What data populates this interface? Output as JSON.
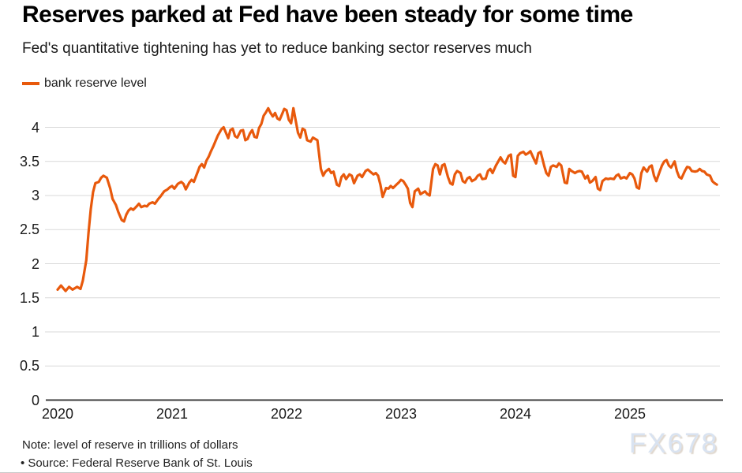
{
  "page": {
    "background": "#ffffff"
  },
  "header": {
    "title": "Reserves parked at Fed have been steady for some time",
    "subtitle": "Fed's quantitative tightening has yet to reduce banking sector reserves much"
  },
  "legend": {
    "label": "bank reserve level",
    "swatch_color": "#e8590c"
  },
  "footer": {
    "note": "Note: level of reserve in trillions of dollars",
    "source": "• Source: Federal Reserve Bank of St. Louis",
    "watermark": "FX678"
  },
  "colors": {
    "line": "#e8590c",
    "gridline": "#d9d9d9",
    "axis": "#3c3c3c",
    "text": "#1a1a1a"
  },
  "chart_data": {
    "type": "line",
    "title": "Reserves parked at Fed have been steady for some time",
    "subtitle": "Fed's quantitative tightening has yet to reduce banking sector reserves much",
    "xlabel": "",
    "ylabel": "",
    "unit_note": "level of reserve in trillions of dollars",
    "grid": "horizontal-only",
    "legend_position": "top-left",
    "x_domain": [
      2020,
      2025.79
    ],
    "y_domain": [
      0,
      4.3
    ],
    "x_tick_values": [
      2020,
      2021,
      2022,
      2023,
      2024,
      2025
    ],
    "x_tick_labels": [
      "2020",
      "2021",
      "2022",
      "2023",
      "2024",
      "2025"
    ],
    "y_tick_values": [
      0,
      0.5,
      1,
      1.5,
      2,
      2.5,
      3,
      3.5,
      4
    ],
    "y_tick_labels": [
      "0",
      "0.5",
      "1",
      "1.5",
      "2",
      "2.5",
      "3",
      "3.5",
      "4"
    ],
    "series": [
      {
        "name": "bank reserve level",
        "color": "#e8590c",
        "points": [
          [
            2020.0,
            1.62
          ],
          [
            2020.03,
            1.68
          ],
          [
            2020.07,
            1.6
          ],
          [
            2020.1,
            1.66
          ],
          [
            2020.13,
            1.62
          ],
          [
            2020.17,
            1.66
          ],
          [
            2020.2,
            1.63
          ],
          [
            2020.22,
            1.75
          ],
          [
            2020.25,
            2.05
          ],
          [
            2020.27,
            2.45
          ],
          [
            2020.29,
            2.8
          ],
          [
            2020.31,
            3.05
          ],
          [
            2020.33,
            3.18
          ],
          [
            2020.36,
            3.2
          ],
          [
            2020.38,
            3.26
          ],
          [
            2020.4,
            3.29
          ],
          [
            2020.43,
            3.26
          ],
          [
            2020.46,
            3.1
          ],
          [
            2020.48,
            2.95
          ],
          [
            2020.51,
            2.86
          ],
          [
            2020.53,
            2.76
          ],
          [
            2020.56,
            2.64
          ],
          [
            2020.58,
            2.62
          ],
          [
            2020.6,
            2.72
          ],
          [
            2020.62,
            2.78
          ],
          [
            2020.64,
            2.81
          ],
          [
            2020.66,
            2.79
          ],
          [
            2020.69,
            2.84
          ],
          [
            2020.71,
            2.88
          ],
          [
            2020.73,
            2.83
          ],
          [
            2020.76,
            2.85
          ],
          [
            2020.78,
            2.84
          ],
          [
            2020.8,
            2.88
          ],
          [
            2020.83,
            2.9
          ],
          [
            2020.85,
            2.88
          ],
          [
            2020.88,
            2.95
          ],
          [
            2020.9,
            2.99
          ],
          [
            2020.93,
            3.06
          ],
          [
            2020.96,
            3.09
          ],
          [
            2020.98,
            3.12
          ],
          [
            2021.0,
            3.14
          ],
          [
            2021.02,
            3.1
          ],
          [
            2021.05,
            3.17
          ],
          [
            2021.08,
            3.2
          ],
          [
            2021.1,
            3.17
          ],
          [
            2021.12,
            3.09
          ],
          [
            2021.15,
            3.19
          ],
          [
            2021.17,
            3.23
          ],
          [
            2021.19,
            3.2
          ],
          [
            2021.22,
            3.33
          ],
          [
            2021.24,
            3.42
          ],
          [
            2021.26,
            3.46
          ],
          [
            2021.28,
            3.41
          ],
          [
            2021.3,
            3.51
          ],
          [
            2021.32,
            3.57
          ],
          [
            2021.34,
            3.65
          ],
          [
            2021.36,
            3.72
          ],
          [
            2021.38,
            3.8
          ],
          [
            2021.4,
            3.88
          ],
          [
            2021.43,
            3.97
          ],
          [
            2021.45,
            4.0
          ],
          [
            2021.47,
            3.92
          ],
          [
            2021.49,
            3.84
          ],
          [
            2021.51,
            3.96
          ],
          [
            2021.53,
            3.98
          ],
          [
            2021.55,
            3.87
          ],
          [
            2021.57,
            3.85
          ],
          [
            2021.6,
            3.95
          ],
          [
            2021.62,
            3.96
          ],
          [
            2021.64,
            3.81
          ],
          [
            2021.66,
            3.83
          ],
          [
            2021.68,
            3.91
          ],
          [
            2021.7,
            3.96
          ],
          [
            2021.72,
            3.86
          ],
          [
            2021.74,
            3.85
          ],
          [
            2021.76,
            3.99
          ],
          [
            2021.78,
            4.05
          ],
          [
            2021.8,
            4.17
          ],
          [
            2021.82,
            4.22
          ],
          [
            2021.84,
            4.28
          ],
          [
            2021.86,
            4.21
          ],
          [
            2021.88,
            4.16
          ],
          [
            2021.9,
            4.21
          ],
          [
            2021.92,
            4.13
          ],
          [
            2021.94,
            4.11
          ],
          [
            2021.96,
            4.19
          ],
          [
            2021.98,
            4.27
          ],
          [
            2022.0,
            4.25
          ],
          [
            2022.02,
            4.11
          ],
          [
            2022.04,
            4.06
          ],
          [
            2022.06,
            4.28
          ],
          [
            2022.08,
            4.1
          ],
          [
            2022.1,
            3.92
          ],
          [
            2022.12,
            3.85
          ],
          [
            2022.14,
            3.98
          ],
          [
            2022.16,
            3.96
          ],
          [
            2022.18,
            3.81
          ],
          [
            2022.21,
            3.79
          ],
          [
            2022.23,
            3.85
          ],
          [
            2022.25,
            3.83
          ],
          [
            2022.27,
            3.81
          ],
          [
            2022.3,
            3.39
          ],
          [
            2022.32,
            3.29
          ],
          [
            2022.34,
            3.35
          ],
          [
            2022.37,
            3.39
          ],
          [
            2022.39,
            3.33
          ],
          [
            2022.41,
            3.35
          ],
          [
            2022.44,
            3.16
          ],
          [
            2022.46,
            3.14
          ],
          [
            2022.48,
            3.27
          ],
          [
            2022.5,
            3.31
          ],
          [
            2022.52,
            3.24
          ],
          [
            2022.55,
            3.31
          ],
          [
            2022.57,
            3.29
          ],
          [
            2022.59,
            3.18
          ],
          [
            2022.62,
            3.29
          ],
          [
            2022.64,
            3.31
          ],
          [
            2022.66,
            3.27
          ],
          [
            2022.69,
            3.36
          ],
          [
            2022.71,
            3.38
          ],
          [
            2022.73,
            3.35
          ],
          [
            2022.76,
            3.31
          ],
          [
            2022.78,
            3.33
          ],
          [
            2022.8,
            3.29
          ],
          [
            2022.82,
            3.16
          ],
          [
            2022.84,
            2.98
          ],
          [
            2022.87,
            3.11
          ],
          [
            2022.89,
            3.1
          ],
          [
            2022.91,
            3.14
          ],
          [
            2022.93,
            3.11
          ],
          [
            2022.96,
            3.16
          ],
          [
            2022.98,
            3.19
          ],
          [
            2023.0,
            3.23
          ],
          [
            2023.02,
            3.21
          ],
          [
            2023.04,
            3.16
          ],
          [
            2023.06,
            3.1
          ],
          [
            2023.08,
            2.89
          ],
          [
            2023.1,
            2.83
          ],
          [
            2023.12,
            3.06
          ],
          [
            2023.15,
            3.1
          ],
          [
            2023.17,
            3.02
          ],
          [
            2023.19,
            3.04
          ],
          [
            2023.21,
            3.06
          ],
          [
            2023.23,
            3.02
          ],
          [
            2023.25,
            3.0
          ],
          [
            2023.28,
            3.39
          ],
          [
            2023.3,
            3.46
          ],
          [
            2023.32,
            3.44
          ],
          [
            2023.34,
            3.31
          ],
          [
            2023.36,
            3.44
          ],
          [
            2023.38,
            3.46
          ],
          [
            2023.41,
            3.27
          ],
          [
            2023.43,
            3.18
          ],
          [
            2023.45,
            3.16
          ],
          [
            2023.47,
            3.31
          ],
          [
            2023.49,
            3.36
          ],
          [
            2023.52,
            3.33
          ],
          [
            2023.54,
            3.21
          ],
          [
            2023.56,
            3.19
          ],
          [
            2023.58,
            3.25
          ],
          [
            2023.6,
            3.27
          ],
          [
            2023.62,
            3.21
          ],
          [
            2023.65,
            3.24
          ],
          [
            2023.67,
            3.29
          ],
          [
            2023.69,
            3.31
          ],
          [
            2023.71,
            3.24
          ],
          [
            2023.74,
            3.25
          ],
          [
            2023.76,
            3.36
          ],
          [
            2023.78,
            3.39
          ],
          [
            2023.8,
            3.33
          ],
          [
            2023.83,
            3.44
          ],
          [
            2023.85,
            3.5
          ],
          [
            2023.87,
            3.56
          ],
          [
            2023.89,
            3.5
          ],
          [
            2023.91,
            3.47
          ],
          [
            2023.94,
            3.58
          ],
          [
            2023.96,
            3.6
          ],
          [
            2023.98,
            3.29
          ],
          [
            2024.0,
            3.27
          ],
          [
            2024.02,
            3.58
          ],
          [
            2024.04,
            3.62
          ],
          [
            2024.07,
            3.64
          ],
          [
            2024.09,
            3.6
          ],
          [
            2024.11,
            3.62
          ],
          [
            2024.13,
            3.65
          ],
          [
            2024.16,
            3.54
          ],
          [
            2024.18,
            3.47
          ],
          [
            2024.2,
            3.62
          ],
          [
            2024.22,
            3.64
          ],
          [
            2024.25,
            3.44
          ],
          [
            2024.27,
            3.33
          ],
          [
            2024.29,
            3.29
          ],
          [
            2024.31,
            3.42
          ],
          [
            2024.33,
            3.44
          ],
          [
            2024.36,
            3.42
          ],
          [
            2024.38,
            3.47
          ],
          [
            2024.4,
            3.44
          ],
          [
            2024.43,
            3.19
          ],
          [
            2024.45,
            3.18
          ],
          [
            2024.47,
            3.39
          ],
          [
            2024.49,
            3.36
          ],
          [
            2024.52,
            3.33
          ],
          [
            2024.54,
            3.35
          ],
          [
            2024.56,
            3.36
          ],
          [
            2024.58,
            3.35
          ],
          [
            2024.61,
            3.25
          ],
          [
            2024.63,
            3.29
          ],
          [
            2024.65,
            3.19
          ],
          [
            2024.67,
            3.21
          ],
          [
            2024.7,
            3.27
          ],
          [
            2024.72,
            3.1
          ],
          [
            2024.74,
            3.08
          ],
          [
            2024.76,
            3.21
          ],
          [
            2024.79,
            3.25
          ],
          [
            2024.81,
            3.24
          ],
          [
            2024.83,
            3.25
          ],
          [
            2024.86,
            3.24
          ],
          [
            2024.88,
            3.29
          ],
          [
            2024.9,
            3.31
          ],
          [
            2024.92,
            3.25
          ],
          [
            2024.95,
            3.27
          ],
          [
            2024.97,
            3.25
          ],
          [
            2025.0,
            3.33
          ],
          [
            2025.02,
            3.31
          ],
          [
            2025.04,
            3.25
          ],
          [
            2025.06,
            3.12
          ],
          [
            2025.08,
            3.1
          ],
          [
            2025.1,
            3.33
          ],
          [
            2025.12,
            3.41
          ],
          [
            2025.15,
            3.35
          ],
          [
            2025.17,
            3.42
          ],
          [
            2025.19,
            3.44
          ],
          [
            2025.21,
            3.29
          ],
          [
            2025.23,
            3.21
          ],
          [
            2025.26,
            3.35
          ],
          [
            2025.28,
            3.44
          ],
          [
            2025.3,
            3.5
          ],
          [
            2025.32,
            3.52
          ],
          [
            2025.34,
            3.44
          ],
          [
            2025.36,
            3.41
          ],
          [
            2025.39,
            3.5
          ],
          [
            2025.41,
            3.36
          ],
          [
            2025.43,
            3.27
          ],
          [
            2025.45,
            3.25
          ],
          [
            2025.48,
            3.36
          ],
          [
            2025.5,
            3.42
          ],
          [
            2025.52,
            3.41
          ],
          [
            2025.54,
            3.36
          ],
          [
            2025.57,
            3.35
          ],
          [
            2025.59,
            3.36
          ],
          [
            2025.61,
            3.39
          ],
          [
            2025.63,
            3.36
          ],
          [
            2025.65,
            3.35
          ],
          [
            2025.67,
            3.31
          ],
          [
            2025.7,
            3.29
          ],
          [
            2025.72,
            3.21
          ],
          [
            2025.74,
            3.18
          ],
          [
            2025.76,
            3.16
          ]
        ]
      }
    ]
  }
}
